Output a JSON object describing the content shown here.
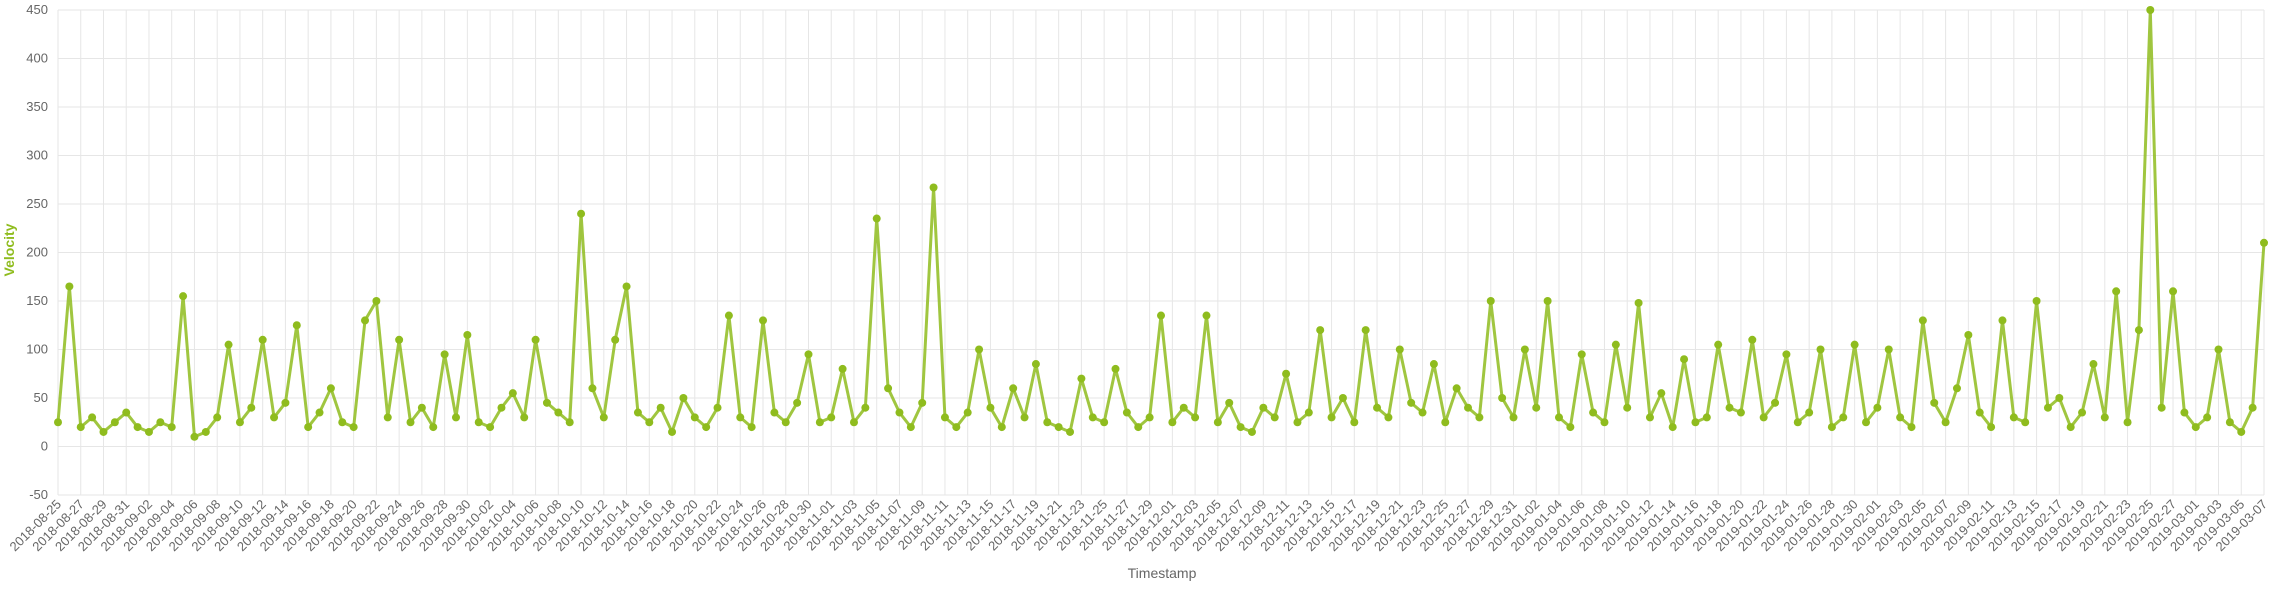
{
  "chart_data": {
    "type": "line",
    "x_label": "Timestamp",
    "y_label": "Velocity",
    "categories": [
      "2018-08-25",
      null,
      "2018-08-27",
      null,
      "2018-08-29",
      null,
      "2018-08-31",
      null,
      "2018-09-02",
      null,
      "2018-09-04",
      null,
      "2018-09-06",
      null,
      "2018-09-08",
      null,
      "2018-09-10",
      null,
      "2018-09-12",
      null,
      "2018-09-14",
      null,
      "2018-09-16",
      null,
      "2018-09-18",
      null,
      "2018-09-20",
      null,
      "2018-09-22",
      null,
      "2018-09-24",
      null,
      "2018-09-26",
      null,
      "2018-09-28",
      null,
      "2018-09-30",
      null,
      "2018-10-02",
      null,
      "2018-10-04",
      null,
      "2018-10-06",
      null,
      "2018-10-08",
      null,
      "2018-10-10",
      null,
      "2018-10-12",
      null,
      "2018-10-14",
      null,
      "2018-10-16",
      null,
      "2018-10-18",
      null,
      "2018-10-20",
      null,
      "2018-10-22",
      null,
      "2018-10-24",
      null,
      "2018-10-26",
      null,
      "2018-10-28",
      null,
      "2018-10-30",
      null,
      "2018-11-01",
      null,
      "2018-11-03",
      null,
      "2018-11-05",
      null,
      "2018-11-07",
      null,
      "2018-11-09",
      null,
      "2018-11-11",
      null,
      "2018-11-13",
      null,
      "2018-11-15",
      null,
      "2018-11-17",
      null,
      "2018-11-19",
      null,
      "2018-11-21",
      null,
      "2018-11-23",
      null,
      "2018-11-25",
      null,
      "2018-11-27",
      null,
      "2018-11-29",
      null,
      "2018-12-01",
      null,
      "2018-12-03",
      null,
      "2018-12-05",
      null,
      "2018-12-07",
      null,
      "2018-12-09",
      null,
      "2018-12-11",
      null,
      "2018-12-13",
      null,
      "2018-12-15",
      null,
      "2018-12-17",
      null,
      "2018-12-19",
      null,
      "2018-12-21",
      null,
      "2018-12-23",
      null,
      "2018-12-25",
      null,
      "2018-12-27",
      null,
      "2018-12-29",
      null,
      "2018-12-31",
      null,
      "2019-01-02",
      null,
      "2019-01-04",
      null,
      "2019-01-06",
      null,
      "2019-01-08",
      null,
      "2019-01-10",
      null,
      "2019-01-12",
      null,
      "2019-01-14",
      null,
      "2019-01-16",
      null,
      "2019-01-18",
      null,
      "2019-01-20",
      null,
      "2019-01-22",
      null,
      "2019-01-24",
      null,
      "2019-01-26",
      null,
      "2019-01-28",
      null,
      "2019-01-30",
      null,
      "2019-02-01",
      null,
      "2019-02-03",
      null,
      "2019-02-05",
      null,
      "2019-02-07",
      null,
      "2019-02-09",
      null,
      "2019-02-11",
      null,
      "2019-02-13",
      null,
      "2019-02-15",
      null,
      "2019-02-17",
      null,
      "2019-02-19",
      null,
      "2019-02-21",
      null,
      "2019-02-23",
      null,
      "2019-02-25",
      null,
      "2019-02-27",
      null,
      "2019-03-01",
      null,
      "2019-03-03",
      null,
      "2019-03-05",
      null,
      "2019-03-07"
    ],
    "series": [
      {
        "color": "#8fbc1e",
        "values": [
          25,
          165,
          20,
          30,
          15,
          25,
          35,
          20,
          15,
          25,
          20,
          155,
          10,
          15,
          30,
          105,
          25,
          40,
          110,
          30,
          45,
          125,
          20,
          35,
          60,
          25,
          20,
          130,
          150,
          30,
          110,
          25,
          40,
          20,
          95,
          30,
          115,
          25,
          20,
          40,
          55,
          30,
          110,
          45,
          35,
          25,
          240,
          60,
          30,
          110,
          165,
          35,
          25,
          40,
          15,
          50,
          30,
          20,
          40,
          135,
          30,
          20,
          130,
          35,
          25,
          45,
          95,
          25,
          30,
          80,
          25,
          40,
          235,
          60,
          35,
          20,
          45,
          267,
          30,
          20,
          35,
          100,
          40,
          20,
          60,
          30,
          85,
          25,
          20,
          15,
          70,
          30,
          25,
          80,
          35,
          20,
          30,
          135,
          25,
          40,
          30,
          135,
          25,
          45,
          20,
          15,
          40,
          30,
          75,
          25,
          35,
          120,
          30,
          50,
          25,
          120,
          40,
          30,
          100,
          45,
          35,
          85,
          25,
          60,
          40,
          30,
          150,
          50,
          30,
          100,
          40,
          150,
          30,
          20,
          95,
          35,
          25,
          105,
          40,
          148,
          30,
          55,
          20,
          90,
          25,
          30,
          105,
          40,
          35,
          110,
          30,
          45,
          95,
          25,
          35,
          100,
          20,
          30,
          105,
          25,
          40,
          100,
          30,
          20,
          130,
          45,
          25,
          60,
          115,
          35,
          20,
          130,
          30,
          25,
          150,
          40,
          50,
          20,
          35,
          85,
          30,
          160,
          25,
          120,
          450,
          40,
          160,
          35,
          20,
          30,
          100,
          25,
          15,
          40,
          210
        ]
      }
    ],
    "ylim": [
      -50,
      450
    ],
    "yticks": [
      -50,
      0,
      50,
      100,
      150,
      200,
      250,
      300,
      350,
      400,
      450
    ],
    "grid": true
  }
}
